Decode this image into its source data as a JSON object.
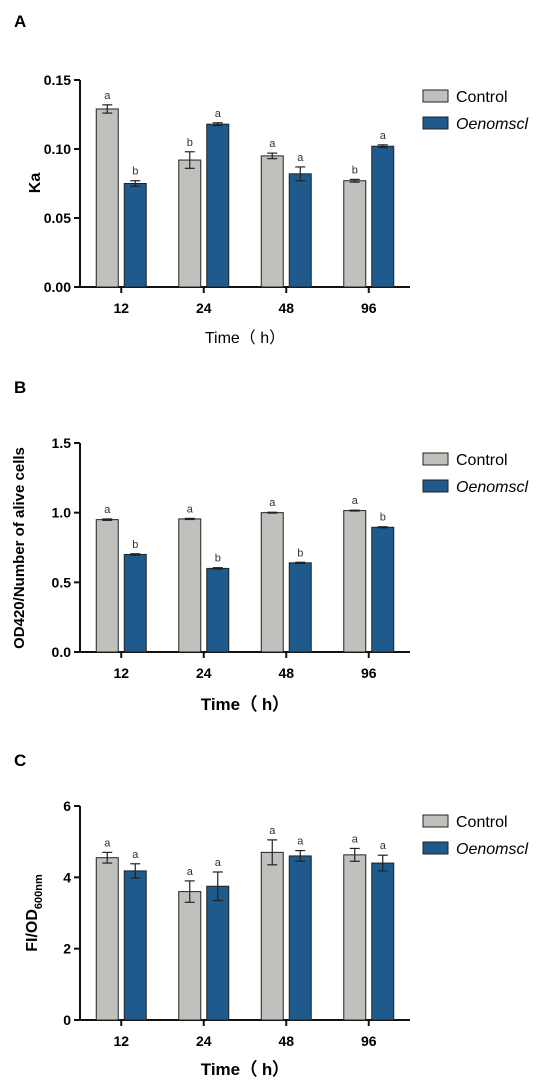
{
  "colors": {
    "control": "#c0c0bc",
    "treatment": "#1f5a8c",
    "axis": "#111111"
  },
  "chart_data": [
    {
      "type": "bar",
      "panel_label": "A",
      "categories": [
        "12",
        "24",
        "48",
        "96"
      ],
      "xlabel": "Time（ h）",
      "ylabel": "Ka",
      "ylim": [
        0,
        0.15
      ],
      "yticks": [
        "0.00",
        "0.05",
        "0.10",
        "0.15"
      ],
      "ytick_values": [
        0,
        0.05,
        0.1,
        0.15
      ],
      "legend": [
        "Control",
        "Oenomscl"
      ],
      "legend_position": "top-right",
      "series": [
        {
          "name": "Control",
          "values": [
            0.129,
            0.092,
            0.095,
            0.077
          ],
          "errors": [
            0.003,
            0.006,
            0.002,
            0.001
          ],
          "letters": [
            "a",
            "b",
            "a",
            "b"
          ]
        },
        {
          "name": "Oenomscl",
          "values": [
            0.075,
            0.118,
            0.082,
            0.102
          ],
          "errors": [
            0.002,
            0.001,
            0.005,
            0.001
          ],
          "letters": [
            "b",
            "a",
            "a",
            "a"
          ]
        }
      ]
    },
    {
      "type": "bar",
      "panel_label": "B",
      "categories": [
        "12",
        "24",
        "48",
        "96"
      ],
      "xlabel": "Time（ h）",
      "ylabel": "OD420/Number of alive cells",
      "ylim": [
        0,
        1.5
      ],
      "yticks": [
        "0.0",
        "0.5",
        "1.0",
        "1.5"
      ],
      "ytick_values": [
        0,
        0.5,
        1.0,
        1.5
      ],
      "legend": [
        "Control",
        "Oenomscl"
      ],
      "legend_position": "top-right",
      "series": [
        {
          "name": "Control",
          "values": [
            0.95,
            0.955,
            1.0,
            1.015
          ],
          "errors": [
            0.005,
            0.004,
            0.003,
            0.003
          ],
          "letters": [
            "a",
            "a",
            "a",
            "a"
          ]
        },
        {
          "name": "Oenomscl",
          "values": [
            0.7,
            0.6,
            0.64,
            0.895
          ],
          "errors": [
            0.005,
            0.005,
            0.004,
            0.004
          ],
          "letters": [
            "b",
            "b",
            "b",
            "b"
          ]
        }
      ]
    },
    {
      "type": "bar",
      "panel_label": "C",
      "categories": [
        "12",
        "24",
        "48",
        "96"
      ],
      "xlabel": "Time（ h）",
      "ylabel": "FI/OD",
      "ylabel_subscript": "600nm",
      "ylim": [
        0,
        6
      ],
      "yticks": [
        "0",
        "2",
        "4",
        "6"
      ],
      "ytick_values": [
        0,
        2,
        4,
        6
      ],
      "legend": [
        "Control",
        "Oenomscl"
      ],
      "legend_position": "top-right",
      "series": [
        {
          "name": "Control",
          "values": [
            4.55,
            3.6,
            4.7,
            4.63
          ],
          "errors": [
            0.15,
            0.3,
            0.35,
            0.18
          ],
          "letters": [
            "a",
            "a",
            "a",
            "a"
          ]
        },
        {
          "name": "Oenomscl",
          "values": [
            4.18,
            3.75,
            4.6,
            4.4
          ],
          "errors": [
            0.2,
            0.4,
            0.15,
            0.22
          ],
          "letters": [
            "a",
            "a",
            "a",
            "a"
          ]
        }
      ]
    }
  ]
}
